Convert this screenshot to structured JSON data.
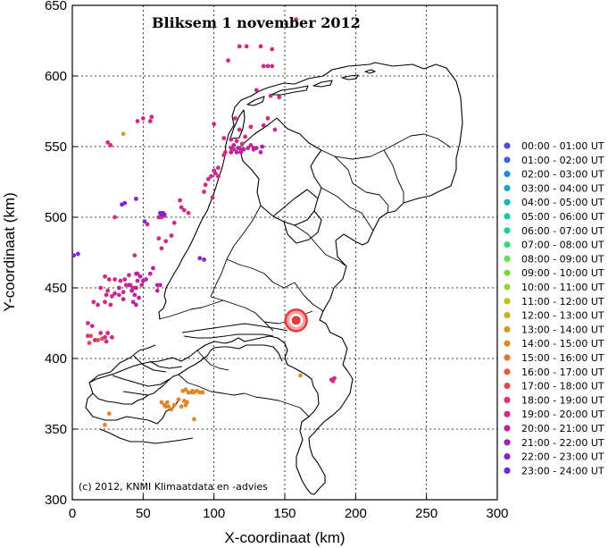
{
  "chart_data": {
    "type": "scatter",
    "title": "Bliksem 1 november 2012",
    "xlabel": "X-coordinaat (km)",
    "ylabel": "Y-coordinaat (km)",
    "xlim": [
      0,
      300
    ],
    "ylim": [
      300,
      650
    ],
    "xticks": [
      0,
      50,
      100,
      150,
      200,
      250,
      300
    ],
    "yticks": [
      300,
      350,
      400,
      450,
      500,
      550,
      600,
      650
    ],
    "grid": true,
    "legend": "right",
    "credit": "(c) 2012, KNMI Klimaatdata en -advies",
    "station": {
      "x": 158,
      "y": 427,
      "color": "#e8383a"
    },
    "legend_entries": [
      {
        "label": "00:00 - 01:00 UT",
        "color": "#4b4ee0"
      },
      {
        "label": "01:00 - 02:00 UT",
        "color": "#3a66e0"
      },
      {
        "label": "02:00 - 03:00 UT",
        "color": "#2a86d8"
      },
      {
        "label": "03:00 - 04:00 UT",
        "color": "#1ea2c8"
      },
      {
        "label": "04:00 - 05:00 UT",
        "color": "#14b8b4"
      },
      {
        "label": "05:00 - 06:00 UT",
        "color": "#14c89e"
      },
      {
        "label": "06:00 - 07:00 UT",
        "color": "#1ed488"
      },
      {
        "label": "07:00 - 08:00 UT",
        "color": "#38dc6c"
      },
      {
        "label": "08:00 - 09:00 UT",
        "color": "#58e050"
      },
      {
        "label": "09:00 - 10:00 UT",
        "color": "#7ad83c"
      },
      {
        "label": "10:00 - 11:00 UT",
        "color": "#9cce2e"
      },
      {
        "label": "11:00 - 12:00 UT",
        "color": "#b4c020"
      },
      {
        "label": "12:00 - 13:00 UT",
        "color": "#c8b01c"
      },
      {
        "label": "13:00 - 14:00 UT",
        "color": "#d69c1c"
      },
      {
        "label": "14:00 - 15:00 UT",
        "color": "#e08828"
      },
      {
        "label": "15:00 - 16:00 UT",
        "color": "#e47232"
      },
      {
        "label": "16:00 - 17:00 UT",
        "color": "#e45e40"
      },
      {
        "label": "17:00 - 18:00 UT",
        "color": "#e24a52"
      },
      {
        "label": "18:00 - 19:00 UT",
        "color": "#dc3668"
      },
      {
        "label": "19:00 - 20:00 UT",
        "color": "#d02a84"
      },
      {
        "label": "20:00 - 21:00 UT",
        "color": "#bc22a2"
      },
      {
        "label": "21:00 - 22:00 UT",
        "color": "#a020c0"
      },
      {
        "label": "22:00 - 23:00 UT",
        "color": "#8224d4"
      },
      {
        "label": "23:00 - 24:00 UT",
        "color": "#6a2ce0"
      }
    ],
    "series": [
      {
        "hour": 19,
        "points": [
          [
            158,
            640
          ],
          [
            118,
            621
          ],
          [
            123,
            621
          ],
          [
            133,
            621
          ],
          [
            141,
            619
          ],
          [
            110,
            611
          ],
          [
            138,
            607
          ],
          [
            135,
            607
          ],
          [
            141,
            607
          ],
          [
            130,
            590
          ],
          [
            140,
            586
          ],
          [
            146,
            585
          ],
          [
            115,
            570
          ],
          [
            138,
            570
          ],
          [
            100,
            566
          ],
          [
            135,
            565
          ],
          [
            126,
            564
          ],
          [
            118,
            562
          ],
          [
            143,
            562
          ],
          [
            122,
            557
          ],
          [
            107,
            556
          ],
          [
            112,
            555
          ],
          [
            116,
            554
          ],
          [
            120,
            552
          ],
          [
            126,
            551
          ],
          [
            112,
            549
          ],
          [
            114,
            548
          ],
          [
            119,
            548
          ],
          [
            108,
            546
          ],
          [
            107,
            544
          ],
          [
            103,
            535
          ],
          [
            100,
            533
          ],
          [
            101,
            531
          ],
          [
            98,
            529
          ],
          [
            103,
            529
          ],
          [
            96,
            527
          ],
          [
            94,
            523
          ],
          [
            93,
            518
          ],
          [
            99,
            514
          ],
          [
            76,
            512
          ],
          [
            77,
            507
          ],
          [
            79,
            505
          ],
          [
            82,
            503
          ],
          [
            72,
            496
          ],
          [
            61,
            485
          ],
          [
            66,
            483
          ],
          [
            70,
            487
          ],
          [
            63,
            478
          ],
          [
            25,
            553
          ],
          [
            27,
            551
          ],
          [
            30,
            500
          ],
          [
            53,
            495
          ],
          [
            44,
            473
          ],
          [
            23,
            458
          ],
          [
            26,
            456
          ],
          [
            30,
            456
          ],
          [
            34,
            455
          ],
          [
            37,
            456
          ],
          [
            40,
            459
          ],
          [
            45,
            460
          ],
          [
            41,
            452
          ],
          [
            38,
            452
          ],
          [
            43,
            450
          ],
          [
            49,
            452
          ],
          [
            25,
            448
          ],
          [
            20,
            450
          ],
          [
            24,
            445
          ],
          [
            28,
            444
          ],
          [
            33,
            445
          ],
          [
            36,
            447
          ],
          [
            23,
            440
          ],
          [
            27,
            438
          ],
          [
            18,
            438
          ],
          [
            15,
            440
          ],
          [
            11,
            425
          ],
          [
            14,
            423
          ],
          [
            20,
            418
          ],
          [
            23,
            415
          ],
          [
            25,
            418
          ],
          [
            28,
            415
          ],
          [
            24,
            412
          ],
          [
            11,
            416
          ],
          [
            16,
            413
          ],
          [
            184,
            384
          ],
          [
            185,
            386
          ],
          [
            183,
            385
          ],
          [
            50,
            570
          ],
          [
            55,
            568
          ],
          [
            56,
            571
          ],
          [
            46,
            568
          ],
          [
            61,
            500
          ],
          [
            63,
            500
          ],
          [
            65,
            501
          ],
          [
            64,
            502
          ]
        ]
      },
      {
        "hour": 20,
        "points": [
          [
            114,
            551
          ],
          [
            117,
            549
          ],
          [
            121,
            548
          ],
          [
            124,
            549
          ],
          [
            128,
            549
          ],
          [
            130,
            549
          ],
          [
            134,
            550
          ],
          [
            128,
            548
          ],
          [
            133,
            546
          ],
          [
            112,
            546
          ],
          [
            116,
            546
          ],
          [
            119,
            546
          ],
          [
            46,
            460
          ],
          [
            48,
            458
          ],
          [
            52,
            456
          ],
          [
            55,
            460
          ],
          [
            57,
            464
          ],
          [
            46,
            455
          ],
          [
            50,
            455
          ],
          [
            45,
            450
          ],
          [
            60,
            452
          ],
          [
            62,
            452
          ],
          [
            40,
            452
          ],
          [
            42,
            448
          ],
          [
            44,
            445
          ],
          [
            47,
            443
          ],
          [
            30,
            446
          ],
          [
            33,
            450
          ],
          [
            36,
            442
          ],
          [
            43,
            440
          ],
          [
            45,
            438
          ],
          [
            60,
            448
          ]
        ]
      },
      {
        "hour": 22,
        "points": [
          [
            1,
            473
          ],
          [
            4,
            474
          ],
          [
            35,
            509
          ],
          [
            37,
            510
          ],
          [
            45,
            513
          ],
          [
            51,
            497
          ],
          [
            62,
            503
          ],
          [
            63,
            502
          ],
          [
            64,
            503
          ],
          [
            65,
            502
          ],
          [
            90,
            471
          ],
          [
            93,
            470
          ]
        ]
      },
      {
        "hour": 17,
        "points": [
          [
            18,
            413
          ],
          [
            21,
            414
          ],
          [
            13,
            416
          ],
          [
            12,
            411
          ]
        ]
      },
      {
        "hour": 13,
        "points": [
          [
            36,
            559
          ],
          [
            161,
            388
          ]
        ]
      },
      {
        "hour": 14,
        "points": [
          [
            78,
            377
          ],
          [
            80,
            378
          ],
          [
            82,
            376
          ],
          [
            85,
            377
          ],
          [
            88,
            377
          ],
          [
            84,
            376
          ],
          [
            86,
            376
          ],
          [
            90,
            376
          ],
          [
            92,
            376
          ],
          [
            75,
            371
          ],
          [
            72,
            367
          ],
          [
            68,
            366
          ],
          [
            70,
            364
          ],
          [
            66,
            366
          ],
          [
            79,
            370
          ],
          [
            81,
            369
          ],
          [
            80,
            367
          ],
          [
            77,
            366
          ],
          [
            63,
            369
          ],
          [
            65,
            367
          ],
          [
            67,
            369
          ],
          [
            86,
            357
          ],
          [
            26,
            361
          ],
          [
            23,
            353
          ]
        ]
      }
    ]
  }
}
